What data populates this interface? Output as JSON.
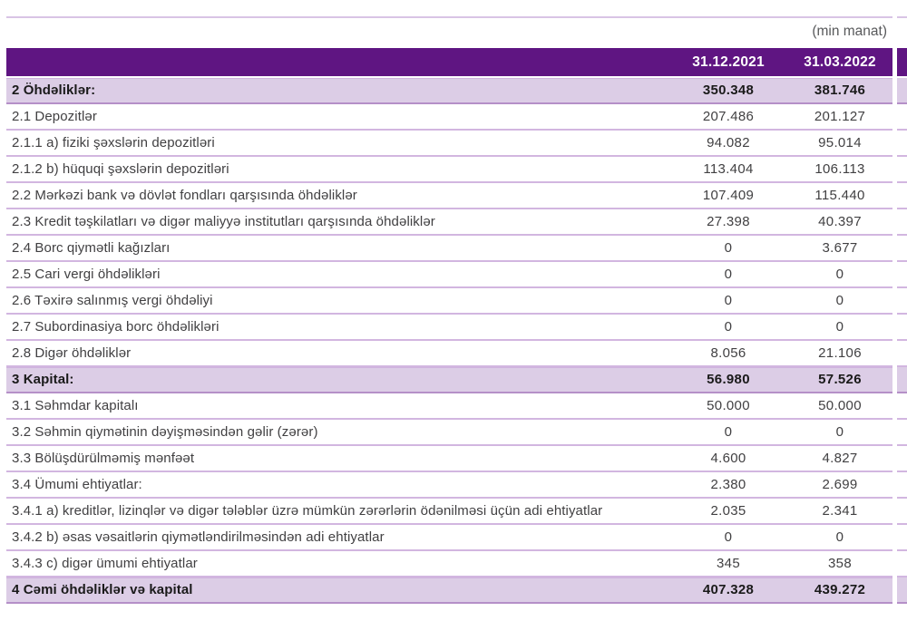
{
  "unit_label": "(min manat)",
  "columns": [
    "31.12.2021",
    "31.03.2022"
  ],
  "colors": {
    "header_purple": "#5F1582",
    "section_row_bg": "#DCCDE6",
    "row_separator": "#D2B6E0",
    "section_border": "#B590C8",
    "body_text": "#414042",
    "unit_text": "#58595B"
  },
  "rows": [
    {
      "type": "section",
      "label": "2 Öhdəliklər:",
      "v1": "350.348",
      "v2": "381.746"
    },
    {
      "type": "item",
      "label": "2.1 Depozitlər",
      "v1": "207.486",
      "v2": "201.127"
    },
    {
      "type": "item",
      "label": "2.1.1 a) fiziki şəxslərin depozitləri",
      "v1": "94.082",
      "v2": "95.014"
    },
    {
      "type": "item",
      "label": "2.1.2 b) hüquqi şəxslərin depozitləri",
      "v1": "113.404",
      "v2": "106.113"
    },
    {
      "type": "item",
      "label": "2.2 Mərkəzi bank və dövlət fondları qarşısında öhdəliklər",
      "v1": "107.409",
      "v2": "115.440"
    },
    {
      "type": "item",
      "label": "2.3 Kredit təşkilatları və digər maliyyə institutları qarşısında öhdəliklər",
      "v1": "27.398",
      "v2": "40.397"
    },
    {
      "type": "item",
      "label": "2.4 Borc qiymətli kağızları",
      "v1": "0",
      "v2": "3.677"
    },
    {
      "type": "item",
      "label": "2.5 Cari vergi öhdəlikləri",
      "v1": "0",
      "v2": "0"
    },
    {
      "type": "item",
      "label": "2.6 Təxirə salınmış vergi öhdəliyi",
      "v1": "0",
      "v2": "0"
    },
    {
      "type": "item",
      "label": "2.7 Subordinasiya borc öhdəlikləri",
      "v1": "0",
      "v2": "0"
    },
    {
      "type": "item",
      "label": "2.8 Digər öhdəliklər",
      "v1": "8.056",
      "v2": "21.106"
    },
    {
      "type": "section",
      "label": "3 Kapital:",
      "v1": "56.980",
      "v2": "57.526"
    },
    {
      "type": "item",
      "label": "3.1 Səhmdar kapitalı",
      "v1": "50.000",
      "v2": "50.000"
    },
    {
      "type": "item",
      "label": "3.2 Səhmin qiymətinin dəyişməsindən gəlir (zərər)",
      "v1": "0",
      "v2": "0"
    },
    {
      "type": "item",
      "label": "3.3 Bölüşdürülməmiş mənfəət",
      "v1": "4.600",
      "v2": "4.827"
    },
    {
      "type": "item",
      "label": "3.4 Ümumi ehtiyatlar:",
      "v1": "2.380",
      "v2": "2.699"
    },
    {
      "type": "item",
      "label": "3.4.1 a) kreditlər, lizinqlər və digər tələblər üzrə mümkün zərərlərin ödənilməsi üçün adi ehtiyatlar",
      "v1": "2.035",
      "v2": "2.341"
    },
    {
      "type": "item",
      "label": "3.4.2 b) əsas vəsaitlərin qiymətləndirilməsindən adi ehtiyatlar",
      "v1": "0",
      "v2": "0"
    },
    {
      "type": "item",
      "label": "3.4.3 c) digər ümumi ehtiyatlar",
      "v1": "345",
      "v2": "358"
    },
    {
      "type": "section",
      "label": "4 Cəmi öhdəliklər və kapital",
      "v1": "407.328",
      "v2": "439.272"
    }
  ]
}
